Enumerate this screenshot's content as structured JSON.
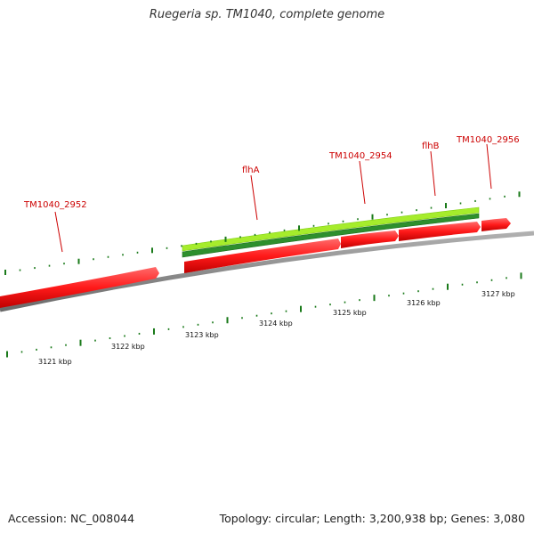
{
  "title": "Ruegeria sp. TM1040, complete genome",
  "footer": {
    "accession": "Accession: NC_008044",
    "summary": "Topology: circular; Length: 3,200,938 bp; Genes: 3,080"
  },
  "gene_labels": [
    {
      "text": "TM1040_2952"
    },
    {
      "text": "flhA"
    },
    {
      "text": "TM1040_2954"
    },
    {
      "text": "flhB"
    },
    {
      "text": "TM1040_2956"
    }
  ],
  "kbp_labels": [
    {
      "text": "3121 kbp"
    },
    {
      "text": "3122 kbp"
    },
    {
      "text": "3123 kbp"
    },
    {
      "text": "3124 kbp"
    },
    {
      "text": "3125 kbp"
    },
    {
      "text": "3126 kbp"
    },
    {
      "text": "3127 kbp"
    }
  ],
  "colors": {
    "gene": "#ff1a1a",
    "gene_label": "#cc0000",
    "backbone": "#8c8c8c",
    "tick": "#1a7a1a",
    "feature_light": "#99e626",
    "feature_dark": "#2b8a2b"
  }
}
